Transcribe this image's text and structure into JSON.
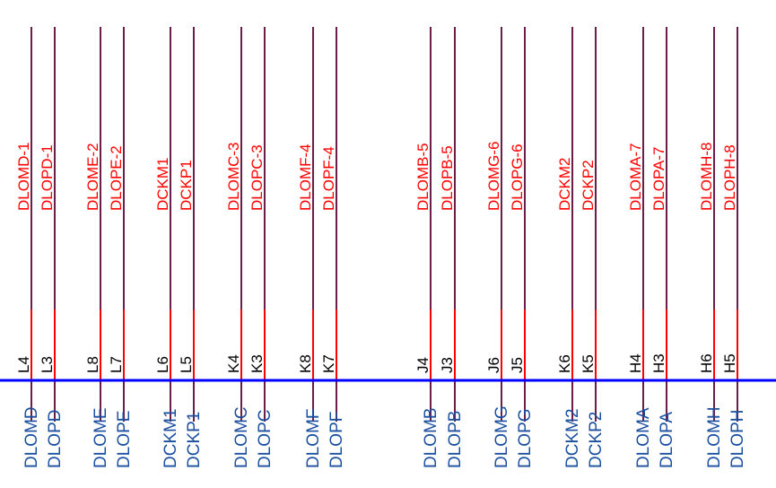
{
  "colors": {
    "wire": "#6b1e4a",
    "pin_stub": "#ff0000",
    "net_label": "#ff0000",
    "pin_number": "#000000",
    "bus": "#0000ff",
    "port_label": "#1a4fa0"
  },
  "pins": [
    {
      "net": "DLOMD-1",
      "pin": "L4",
      "port": "DLOMD"
    },
    {
      "net": "DLOPD-1",
      "pin": "L3",
      "port": "DLOPD"
    },
    {
      "net": "DLOME-2",
      "pin": "L8",
      "port": "DLOME"
    },
    {
      "net": "DLOPE-2",
      "pin": "L7",
      "port": "DLOPE"
    },
    {
      "net": "DCKM1",
      "pin": "L6",
      "port": "DCKM1"
    },
    {
      "net": "DCKP1",
      "pin": "L5",
      "port": "DCKP1"
    },
    {
      "net": "DLOMC-3",
      "pin": "K4",
      "port": "DLOMC"
    },
    {
      "net": "DLOPC-3",
      "pin": "K3",
      "port": "DLOPC"
    },
    {
      "net": "DLOMF-4",
      "pin": "K8",
      "port": "DLOMF"
    },
    {
      "net": "DLOPF-4",
      "pin": "K7",
      "port": "DLOPF"
    },
    {
      "net": "DLOMB-5",
      "pin": "J4",
      "port": "DLOMB"
    },
    {
      "net": "DLOPB-5",
      "pin": "J3",
      "port": "DLOPB"
    },
    {
      "net": "DLOMG-6",
      "pin": "J6",
      "port": "DLOMG"
    },
    {
      "net": "DLOPG-6",
      "pin": "J5",
      "port": "DLOPG"
    },
    {
      "net": "DCKM2",
      "pin": "K6",
      "port": "DCKM2"
    },
    {
      "net": "DCKP2",
      "pin": "K5",
      "port": "DCKP2"
    },
    {
      "net": "DLOMA-7",
      "pin": "H4",
      "port": "DLOMA"
    },
    {
      "net": "DLOPA-7",
      "pin": "H3",
      "port": "DLOPA"
    },
    {
      "net": "DLOMH-8",
      "pin": "H6",
      "port": "DLOMH"
    },
    {
      "net": "DLOPH-8",
      "pin": "H5",
      "port": "DLOPH"
    }
  ]
}
